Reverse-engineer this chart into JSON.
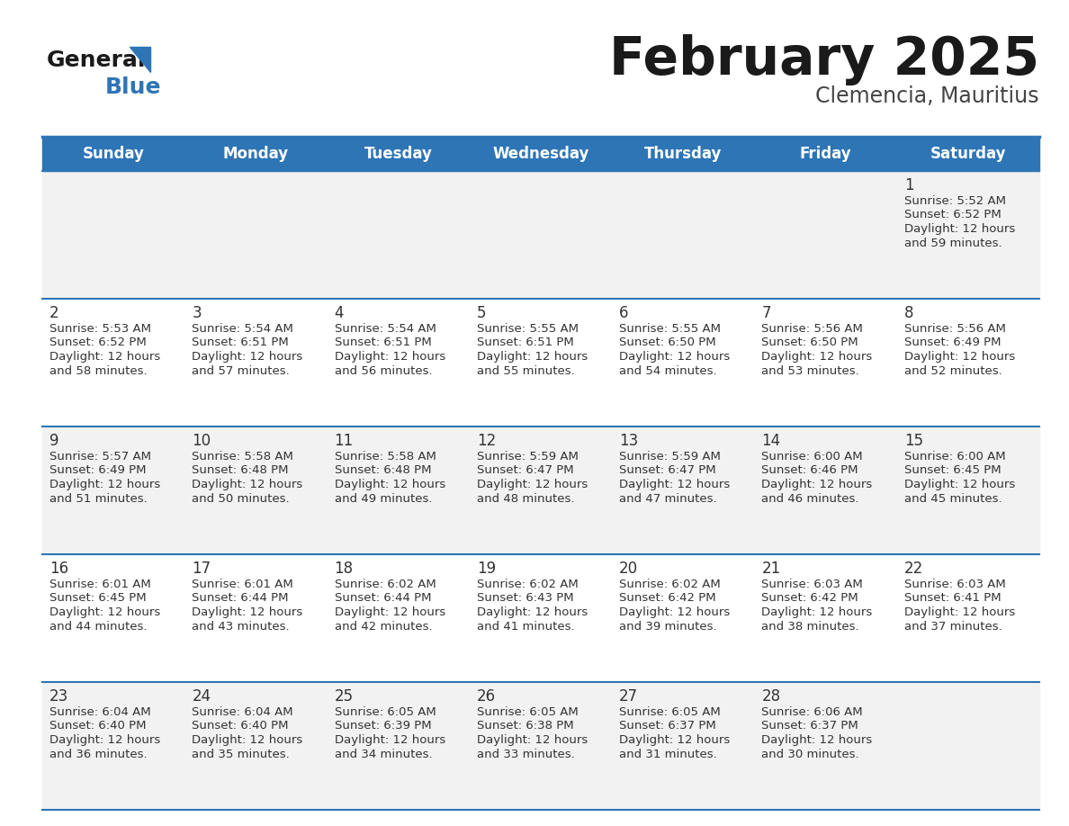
{
  "title": "February 2025",
  "subtitle": "Clemencia, Mauritius",
  "header_bg": "#2E75B6",
  "header_text_color": "#FFFFFF",
  "day_names": [
    "Sunday",
    "Monday",
    "Tuesday",
    "Wednesday",
    "Thursday",
    "Friday",
    "Saturday"
  ],
  "title_color": "#1a1a1a",
  "subtitle_color": "#444444",
  "cell_bg_week1": "#F2F2F2",
  "cell_bg_odd": "#F2F2F2",
  "cell_bg_even": "#FFFFFF",
  "separator_color": "#2E75B6",
  "date_color": "#333333",
  "info_color": "#333333",
  "logo_general_color": "#1a1a1a",
  "logo_blue_color": "#2E75B6",
  "weeks": [
    [
      {
        "date": "",
        "sunrise": "",
        "sunset": "",
        "daylight": ""
      },
      {
        "date": "",
        "sunrise": "",
        "sunset": "",
        "daylight": ""
      },
      {
        "date": "",
        "sunrise": "",
        "sunset": "",
        "daylight": ""
      },
      {
        "date": "",
        "sunrise": "",
        "sunset": "",
        "daylight": ""
      },
      {
        "date": "",
        "sunrise": "",
        "sunset": "",
        "daylight": ""
      },
      {
        "date": "",
        "sunrise": "",
        "sunset": "",
        "daylight": ""
      },
      {
        "date": "1",
        "sunrise": "5:52 AM",
        "sunset": "6:52 PM",
        "daylight": "12 hours and 59 minutes."
      }
    ],
    [
      {
        "date": "2",
        "sunrise": "5:53 AM",
        "sunset": "6:52 PM",
        "daylight": "12 hours and 58 minutes."
      },
      {
        "date": "3",
        "sunrise": "5:54 AM",
        "sunset": "6:51 PM",
        "daylight": "12 hours and 57 minutes."
      },
      {
        "date": "4",
        "sunrise": "5:54 AM",
        "sunset": "6:51 PM",
        "daylight": "12 hours and 56 minutes."
      },
      {
        "date": "5",
        "sunrise": "5:55 AM",
        "sunset": "6:51 PM",
        "daylight": "12 hours and 55 minutes."
      },
      {
        "date": "6",
        "sunrise": "5:55 AM",
        "sunset": "6:50 PM",
        "daylight": "12 hours and 54 minutes."
      },
      {
        "date": "7",
        "sunrise": "5:56 AM",
        "sunset": "6:50 PM",
        "daylight": "12 hours and 53 minutes."
      },
      {
        "date": "8",
        "sunrise": "5:56 AM",
        "sunset": "6:49 PM",
        "daylight": "12 hours and 52 minutes."
      }
    ],
    [
      {
        "date": "9",
        "sunrise": "5:57 AM",
        "sunset": "6:49 PM",
        "daylight": "12 hours and 51 minutes."
      },
      {
        "date": "10",
        "sunrise": "5:58 AM",
        "sunset": "6:48 PM",
        "daylight": "12 hours and 50 minutes."
      },
      {
        "date": "11",
        "sunrise": "5:58 AM",
        "sunset": "6:48 PM",
        "daylight": "12 hours and 49 minutes."
      },
      {
        "date": "12",
        "sunrise": "5:59 AM",
        "sunset": "6:47 PM",
        "daylight": "12 hours and 48 minutes."
      },
      {
        "date": "13",
        "sunrise": "5:59 AM",
        "sunset": "6:47 PM",
        "daylight": "12 hours and 47 minutes."
      },
      {
        "date": "14",
        "sunrise": "6:00 AM",
        "sunset": "6:46 PM",
        "daylight": "12 hours and 46 minutes."
      },
      {
        "date": "15",
        "sunrise": "6:00 AM",
        "sunset": "6:45 PM",
        "daylight": "12 hours and 45 minutes."
      }
    ],
    [
      {
        "date": "16",
        "sunrise": "6:01 AM",
        "sunset": "6:45 PM",
        "daylight": "12 hours and 44 minutes."
      },
      {
        "date": "17",
        "sunrise": "6:01 AM",
        "sunset": "6:44 PM",
        "daylight": "12 hours and 43 minutes."
      },
      {
        "date": "18",
        "sunrise": "6:02 AM",
        "sunset": "6:44 PM",
        "daylight": "12 hours and 42 minutes."
      },
      {
        "date": "19",
        "sunrise": "6:02 AM",
        "sunset": "6:43 PM",
        "daylight": "12 hours and 41 minutes."
      },
      {
        "date": "20",
        "sunrise": "6:02 AM",
        "sunset": "6:42 PM",
        "daylight": "12 hours and 39 minutes."
      },
      {
        "date": "21",
        "sunrise": "6:03 AM",
        "sunset": "6:42 PM",
        "daylight": "12 hours and 38 minutes."
      },
      {
        "date": "22",
        "sunrise": "6:03 AM",
        "sunset": "6:41 PM",
        "daylight": "12 hours and 37 minutes."
      }
    ],
    [
      {
        "date": "23",
        "sunrise": "6:04 AM",
        "sunset": "6:40 PM",
        "daylight": "12 hours and 36 minutes."
      },
      {
        "date": "24",
        "sunrise": "6:04 AM",
        "sunset": "6:40 PM",
        "daylight": "12 hours and 35 minutes."
      },
      {
        "date": "25",
        "sunrise": "6:05 AM",
        "sunset": "6:39 PM",
        "daylight": "12 hours and 34 minutes."
      },
      {
        "date": "26",
        "sunrise": "6:05 AM",
        "sunset": "6:38 PM",
        "daylight": "12 hours and 33 minutes."
      },
      {
        "date": "27",
        "sunrise": "6:05 AM",
        "sunset": "6:37 PM",
        "daylight": "12 hours and 31 minutes."
      },
      {
        "date": "28",
        "sunrise": "6:06 AM",
        "sunset": "6:37 PM",
        "daylight": "12 hours and 30 minutes."
      },
      {
        "date": "",
        "sunrise": "",
        "sunset": "",
        "daylight": ""
      }
    ]
  ]
}
